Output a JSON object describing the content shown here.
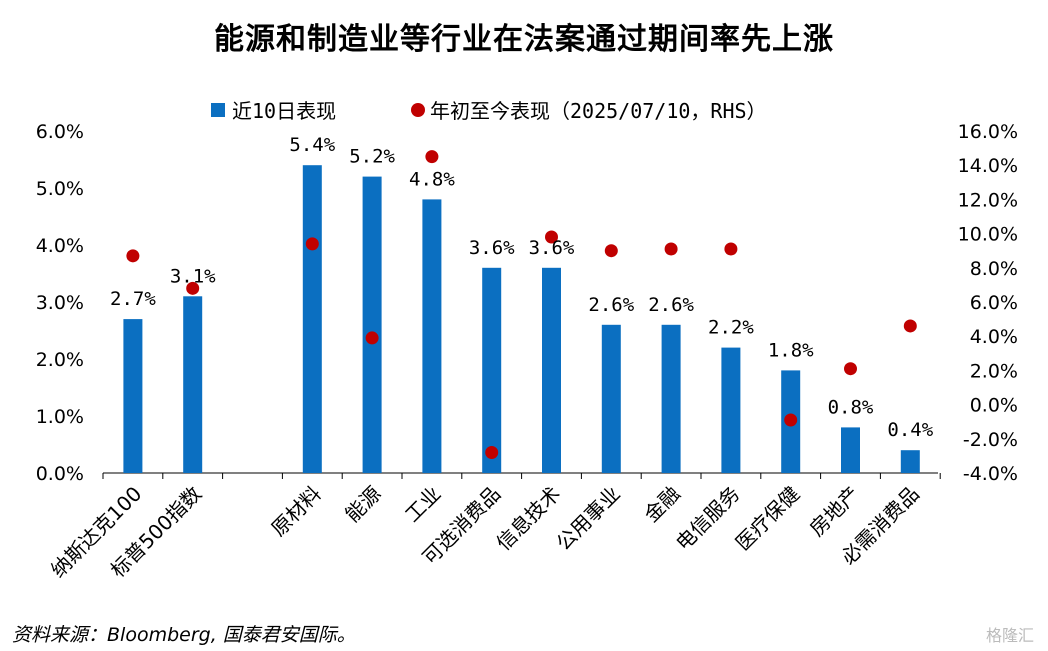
{
  "chart_data": {
    "type": "bar",
    "title": "能源和制造业等行业在法案通过期间率先上涨",
    "categories": [
      "纳斯达克100",
      "标普500指数",
      "原材料",
      "能源",
      "工业",
      "可选消费品",
      "信息技术",
      "公用事业",
      "金融",
      "电信服务",
      "医疗保健",
      "房地产",
      "必需消费品"
    ],
    "series": [
      {
        "name": "近10日表现",
        "axis": "left",
        "mark": "bar",
        "color": "#0b6fc1",
        "values": [
          2.7,
          3.1,
          5.4,
          5.2,
          4.8,
          3.6,
          3.6,
          2.6,
          2.6,
          2.2,
          1.8,
          0.8,
          0.4
        ],
        "labels": [
          "2.7%",
          "3.1%",
          "5.4%",
          "5.2%",
          "4.8%",
          "3.6%",
          "3.6%",
          "2.6%",
          "2.6%",
          "2.2%",
          "1.8%",
          "0.8%",
          "0.4%"
        ]
      },
      {
        "name": "年初至今表现（2025/07/10，RHS）",
        "axis": "right",
        "mark": "dot",
        "color": "#c00000",
        "values": [
          8.7,
          6.8,
          9.4,
          3.9,
          14.5,
          -2.8,
          9.8,
          9.0,
          9.1,
          9.1,
          -0.9,
          2.1,
          4.6
        ]
      }
    ],
    "ylim_left": [
      0,
      6
    ],
    "yticks_left": [
      "0.0%",
      "1.0%",
      "2.0%",
      "3.0%",
      "4.0%",
      "5.0%",
      "6.0%"
    ],
    "ylim_right": [
      -4,
      16
    ],
    "yticks_right": [
      "-4.0%",
      "-2.0%",
      "0.0%",
      "2.0%",
      "4.0%",
      "6.0%",
      "8.0%",
      "10.0%",
      "12.0%",
      "14.0%",
      "16.0%"
    ],
    "grid": false,
    "legend": "top-center"
  },
  "source": "资料来源：Bloomberg, 国泰君安国际。",
  "watermark": "格隆汇"
}
